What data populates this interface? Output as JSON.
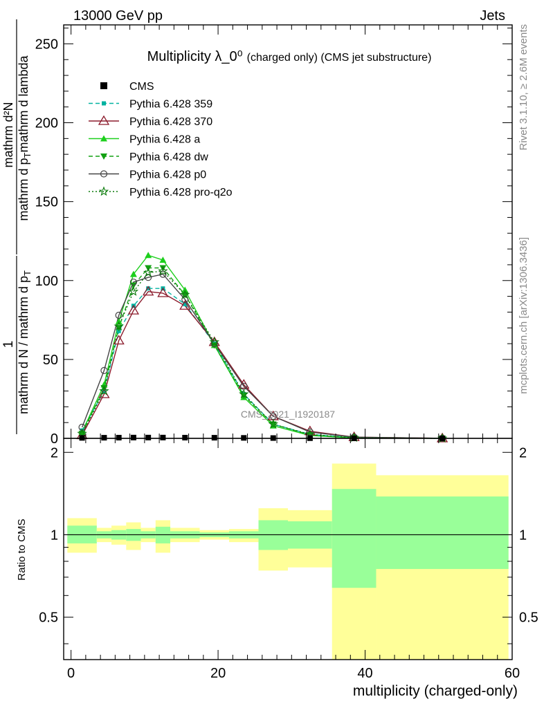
{
  "header": {
    "left": "13000 GeV pp",
    "right": "Jets"
  },
  "side_labels": {
    "rivet": "Rivet 3.1.10, ≥ 2.6M events",
    "mcplots": "mcplots.cern.ch [arXiv:1306.3436]"
  },
  "chart_data": {
    "type": "line",
    "title_main": "Multiplicity λ_0⁰",
    "title_sub": "(charged only) (CMS jet substructure)",
    "watermark": "CMS_2021_I1920187",
    "xlabel": "multiplicity (charged-only)",
    "ylabel_top": {
      "numerator": "1",
      "denominator": "mathrm d N / mathrm d p",
      "sub": "T"
    },
    "ylabel_rest": {
      "numerator": "mathrm d²N",
      "denominator_a": "mathrm d p",
      "sub": "T",
      "denominator_b": "mathrm d lambda"
    },
    "ratio_ylabel": "Ratio to CMS",
    "xlim": [
      -1,
      60
    ],
    "ylim": [
      0,
      262
    ],
    "ratio_ylim": [
      0.35,
      2.25
    ],
    "x_ticks": [
      0,
      20,
      40,
      60
    ],
    "y_ticks": [
      0,
      50,
      100,
      150,
      200,
      250
    ],
    "ratio_ticks": [
      0.5,
      1,
      2
    ],
    "ratio_tick_labels": [
      "0.5",
      "1",
      "2"
    ],
    "x": [
      1.5,
      4.5,
      6.5,
      8.5,
      10.5,
      12.5,
      15.5,
      19.5,
      23.5,
      27.5,
      32.5,
      38.5,
      50.5
    ],
    "legend": {
      "placement": "top-left",
      "entries": [
        "CMS",
        "Pythia 6.428 359",
        "Pythia 6.428 370",
        "Pythia 6.428 a",
        "Pythia 6.428 dw",
        "Pythia 6.428 p0",
        "Pythia 6.428 pro-q2o"
      ]
    },
    "cms": {
      "name": "CMS",
      "values": [
        0.3,
        0.4,
        0.45,
        0.5,
        0.5,
        0.5,
        0.45,
        0.4,
        0.3,
        0.2,
        0.1,
        0.05,
        0.01
      ]
    },
    "series": [
      {
        "name": "Pythia 6.428 359",
        "color": "#00b2a0",
        "values": [
          5,
          30,
          68,
          84,
          95,
          95,
          85,
          60,
          28,
          9,
          2.5,
          0.4,
          0.02
        ]
      },
      {
        "name": "Pythia 6.428 370",
        "color": "#8b1a2b",
        "values": [
          2,
          28,
          62,
          81,
          93,
          92,
          84,
          61,
          34,
          14,
          4.5,
          0.8,
          0.03
        ]
      },
      {
        "name": "Pythia 6.428 a",
        "color": "#1ccf1c",
        "values": [
          4,
          34,
          74,
          104,
          116,
          113,
          94,
          59,
          26,
          8,
          1.8,
          0.3,
          0.01
        ]
      },
      {
        "name": "Pythia 6.428 dw",
        "color": "#12a012",
        "values": [
          3,
          32,
          70,
          97,
          108,
          108,
          91,
          59,
          27,
          9,
          2.2,
          0.3,
          0.01
        ]
      },
      {
        "name": "Pythia 6.428 p0",
        "color": "#444444",
        "values": [
          7,
          43,
          78,
          99,
          102,
          104,
          88,
          60,
          33,
          14,
          4,
          0.8,
          0.03
        ]
      },
      {
        "name": "Pythia 6.428 pro-q2o",
        "color": "#0a7a0a",
        "values": [
          3,
          30,
          71,
          93,
          105,
          106,
          91,
          61,
          28,
          9,
          2.5,
          0.4,
          0.02
        ]
      }
    ],
    "ratio_bands": [
      {
        "x0": -0.5,
        "x1": 3.5,
        "green": [
          0.93,
          1.08
        ],
        "yellow": [
          0.86,
          1.15
        ]
      },
      {
        "x0": 3.5,
        "x1": 5.5,
        "green": [
          0.97,
          1.03
        ],
        "yellow": [
          0.94,
          1.06
        ]
      },
      {
        "x0": 5.5,
        "x1": 7.5,
        "green": [
          0.96,
          1.04
        ],
        "yellow": [
          0.92,
          1.08
        ]
      },
      {
        "x0": 7.5,
        "x1": 9.5,
        "green": [
          0.95,
          1.05
        ],
        "yellow": [
          0.88,
          1.11
        ]
      },
      {
        "x0": 9.5,
        "x1": 11.5,
        "green": [
          0.97,
          1.03
        ],
        "yellow": [
          0.94,
          1.06
        ]
      },
      {
        "x0": 11.5,
        "x1": 13.5,
        "green": [
          0.93,
          1.07
        ],
        "yellow": [
          0.86,
          1.13
        ]
      },
      {
        "x0": 13.5,
        "x1": 17.5,
        "green": [
          0.97,
          1.03
        ],
        "yellow": [
          0.94,
          1.06
        ]
      },
      {
        "x0": 17.5,
        "x1": 21.5,
        "green": [
          0.98,
          1.02
        ],
        "yellow": [
          0.96,
          1.04
        ]
      },
      {
        "x0": 21.5,
        "x1": 25.5,
        "green": [
          0.97,
          1.03
        ],
        "yellow": [
          0.94,
          1.05
        ]
      },
      {
        "x0": 25.5,
        "x1": 29.5,
        "green": [
          0.88,
          1.13
        ],
        "yellow": [
          0.74,
          1.25
        ]
      },
      {
        "x0": 29.5,
        "x1": 35.5,
        "green": [
          0.89,
          1.12
        ],
        "yellow": [
          0.76,
          1.23
        ]
      },
      {
        "x0": 35.5,
        "x1": 41.5,
        "green": [
          0.64,
          1.47
        ],
        "yellow": [
          0.2,
          1.82
        ]
      },
      {
        "x0": 41.5,
        "x1": 59.5,
        "green": [
          0.75,
          1.38
        ],
        "yellow": [
          0.2,
          1.65
        ]
      }
    ]
  }
}
